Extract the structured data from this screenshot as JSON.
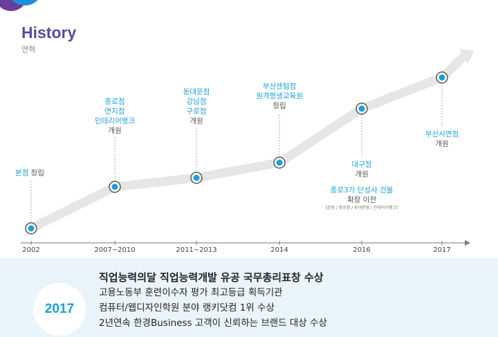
{
  "header": {
    "title": "History",
    "subtitle": "연혁"
  },
  "colors": {
    "accent": "#1c9fd6",
    "title": "#5a4a9c",
    "line": "#e6e6e6",
    "panel": "#eaf4fb"
  },
  "axis": {
    "years": [
      "2002",
      "2007~2010",
      "2011~2013",
      "2014",
      "2016",
      "2017"
    ]
  },
  "events": {
    "e2002": {
      "place": "본점",
      "action": "창립"
    },
    "e2007": {
      "line1": "종로점",
      "line2": "연지점",
      "line3": "인테리어뱅크",
      "action": "개원"
    },
    "e2011": {
      "line1": "동대문점",
      "line2": "강남점",
      "line3": "구로점",
      "action": "개원"
    },
    "e2014": {
      "line1": "부산센텀점",
      "line2": "원격평생교육원",
      "action": "창립"
    },
    "e2016a": {
      "line1": "대구점",
      "action": "개원"
    },
    "e2016b": {
      "line1": "종로3가 단성사 건물",
      "line2": "확장 이전",
      "note": "[본점 / 종로점 / 동대문점 / 인테리어뱅크]"
    },
    "e2017": {
      "line1": "부산서면점",
      "action": "개원"
    }
  },
  "awards": {
    "year": "2017",
    "main": "직업능력의달 직업능력개발 유공 국무총리표창 수상",
    "items": [
      "고용노동부 훈련이수자 평가 최고등급 획득기관",
      "컴퓨터/웹디자인학원 분야 랭키닷컴 1위 수상",
      "2년연속 한경Business 고객이 신뢰하는 브랜드 대상 수상"
    ]
  }
}
